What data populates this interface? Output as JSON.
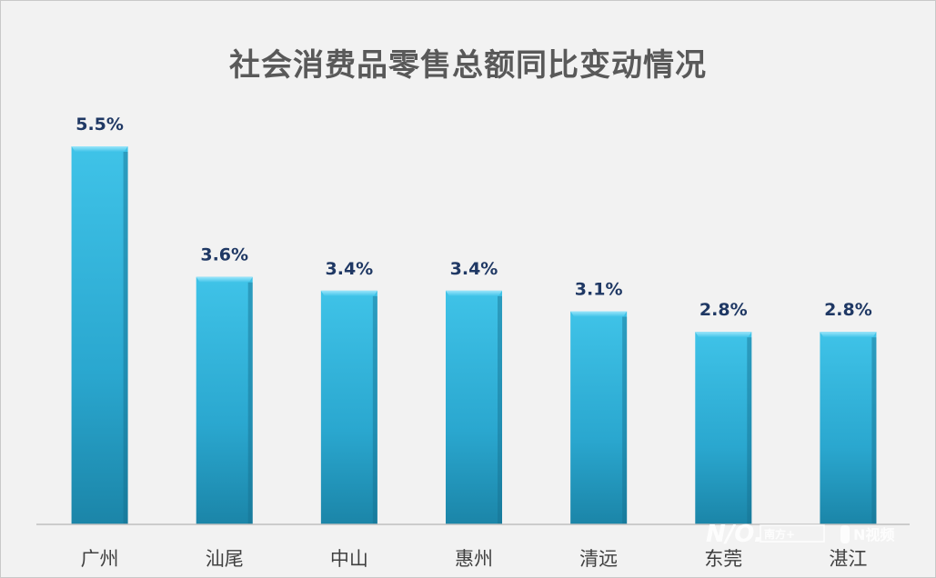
{
  "chart_data": {
    "type": "bar",
    "title": "社会消费品零售总额同比变动情况",
    "categories": [
      "广州",
      "汕尾",
      "中山",
      "惠州",
      "清远",
      "东莞",
      "湛江"
    ],
    "values": [
      5.5,
      3.6,
      3.4,
      3.4,
      3.1,
      2.8,
      2.8
    ],
    "value_labels": [
      "5.5%",
      "3.6%",
      "3.4%",
      "3.4%",
      "3.1%",
      "2.8%",
      "2.8%"
    ],
    "unit": "%",
    "ylim": [
      0,
      5.5
    ],
    "grid": false,
    "legend": "none",
    "colors": {
      "bar_top": "#3fc3e8",
      "bar_bottom": "#1b85a8",
      "label": "#1f3864",
      "axis": "#bfbfbf",
      "category": "#404040"
    }
  },
  "watermark": {
    "logo": "N/O.",
    "badge_text": "南方+",
    "video_text": "N视频"
  }
}
